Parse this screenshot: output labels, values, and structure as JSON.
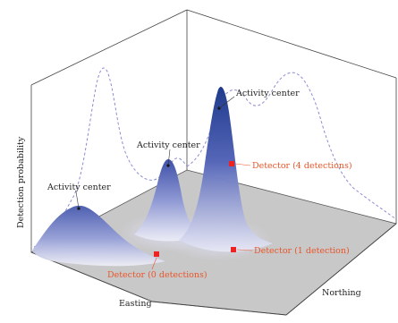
{
  "axes": {
    "vertical_label": "Detection probability",
    "x_label": "Easting",
    "y_label": "Northing"
  },
  "activity_centers": [
    {
      "label": "Activity center"
    },
    {
      "label": "Activity center"
    },
    {
      "label": "Activity center"
    }
  ],
  "detectors": [
    {
      "label": "Detector (4 detections)",
      "detections": 4
    },
    {
      "label": "Detector (1 detection)",
      "detections": 1
    },
    {
      "label": "Detector (0 detections)",
      "detections": 0
    }
  ],
  "colors": {
    "surface_peak": "#1f3a8c",
    "surface_base": "#eaeaf6",
    "plane": "#c8c8c8",
    "detector": "#ee2222",
    "detector_text": "#e8552a",
    "dashed_profile": "#8c8cd0",
    "frame": "#444444"
  }
}
